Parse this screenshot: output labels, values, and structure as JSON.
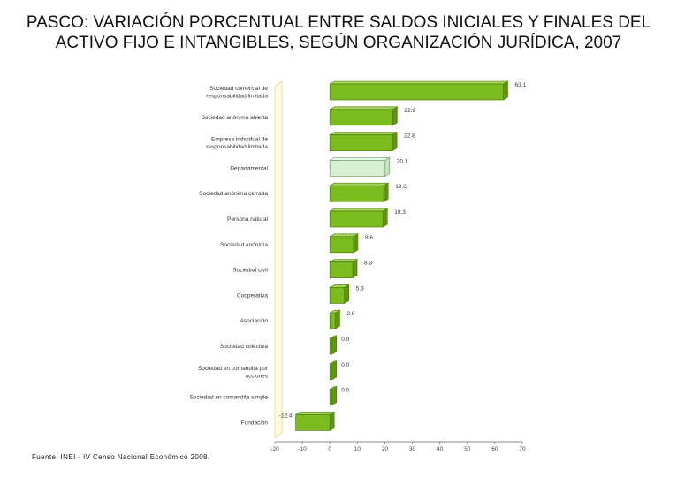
{
  "title": "PASCO: VARIACIÓN PORCENTUAL ENTRE SALDOS INICIALES Y FINALES DEL ACTIVO FIJO E INTANGIBLES, SEGÚN ORGANIZACIÓN JURÍDICA, 2007",
  "source": "Fuente: INEI - IV Censo Nacional Económico 2008.",
  "colors": {
    "bar": "#7cbb1e",
    "bar_highlight": "#d8f0d0",
    "wall": "#fffbe0",
    "wall_edge": "#e8dca0",
    "grid": "#dddddd"
  },
  "chart_data": {
    "type": "bar",
    "orientation": "horizontal",
    "title": "PASCO: VARIACIÓN PORCENTUAL ENTRE SALDOS INICIALES Y FINALES DEL ACTIVO FIJO E INTANGIBLES, SEGÚN ORGANIZACIÓN JURÍDICA, 2007",
    "categories": [
      [
        "Sociedad comercial de",
        "responsabilidad limitada"
      ],
      [
        "Sociedad anónima abierta"
      ],
      [
        "Empresa individual de",
        "responsabilidad limitada"
      ],
      [
        "Departamental"
      ],
      [
        "Sociedad anónima cerrada"
      ],
      [
        "Persona natural"
      ],
      [
        "Sociedad anónima"
      ],
      [
        "Sociedad civil"
      ],
      [
        "Cooperativa"
      ],
      [
        "Asociación"
      ],
      [
        "Sociedad colectiva"
      ],
      [
        "Sociedad en comandita por",
        "acciones"
      ],
      [
        "Sociedad en comandita simple"
      ],
      [
        "Fundación"
      ]
    ],
    "values": [
      63.1,
      22.9,
      22.8,
      20.1,
      19.6,
      19.3,
      8.6,
      8.3,
      5.3,
      2.0,
      0.0,
      0.0,
      0.0,
      -12.4
    ],
    "value_labels": [
      "63.1",
      "22.9",
      "22.8",
      "20.1",
      "19.6",
      "19.3",
      "8.6",
      "8.3",
      "5.3",
      "2.0",
      "0.0",
      "0.0",
      "0.0",
      "-12.4"
    ],
    "highlight_index": 3,
    "xlim": [
      -20,
      70
    ],
    "xticks": [
      -20,
      -10,
      0,
      10,
      20,
      30,
      40,
      50,
      60,
      70
    ],
    "xticks_labels": [
      "-20",
      "-10",
      "0",
      "10",
      "20",
      "30",
      "40",
      "50",
      "60",
      "70"
    ],
    "xlabel": "",
    "ylabel": "",
    "grid": false
  }
}
